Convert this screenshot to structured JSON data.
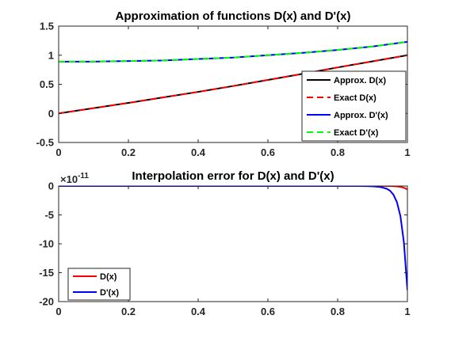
{
  "chart_data": [
    {
      "type": "line",
      "title": "Approximation of functions D(x) and D'(x)",
      "xlabel": "",
      "ylabel": "",
      "xlim": [
        0,
        1
      ],
      "ylim": [
        -0.5,
        1.5
      ],
      "x_ticks": [
        "0",
        "0.2",
        "0.4",
        "0.6",
        "0.8",
        "1"
      ],
      "y_ticks": [
        "-0.5",
        "0",
        "0.5",
        "1",
        "1.5"
      ],
      "grid": false,
      "legend_position": "bottom-right",
      "x": [
        0,
        0.1,
        0.2,
        0.3,
        0.4,
        0.5,
        0.6,
        0.7,
        0.8,
        0.9,
        1.0
      ],
      "series": [
        {
          "name": "Approx. D(x)",
          "color": "#000000",
          "style": "solid",
          "values": [
            0,
            0.09,
            0.18,
            0.275,
            0.37,
            0.47,
            0.575,
            0.68,
            0.79,
            0.895,
            1.0
          ]
        },
        {
          "name": "Exact D(x)",
          "color": "#ff0000",
          "style": "dashed",
          "values": [
            0,
            0.09,
            0.18,
            0.275,
            0.37,
            0.47,
            0.575,
            0.68,
            0.79,
            0.895,
            1.0
          ]
        },
        {
          "name": "Approx. D'(x)",
          "color": "#0000ff",
          "style": "solid",
          "values": [
            0.89,
            0.89,
            0.9,
            0.91,
            0.935,
            0.96,
            1.0,
            1.04,
            1.09,
            1.15,
            1.23
          ]
        },
        {
          "name": "Exact D'(x)",
          "color": "#00ff00",
          "style": "dashed",
          "values": [
            0.89,
            0.89,
            0.9,
            0.91,
            0.935,
            0.96,
            1.0,
            1.04,
            1.09,
            1.15,
            1.23
          ]
        }
      ]
    },
    {
      "type": "line",
      "title": "Interpolation error for D(x) and D'(x)",
      "xlabel": "",
      "ylabel": "",
      "xlim": [
        0,
        1
      ],
      "ylim": [
        -20,
        0
      ],
      "y_multiplier": "×10",
      "y_multiplier_exponent": "-11",
      "x_ticks": [
        "0",
        "0.2",
        "0.4",
        "0.6",
        "0.8",
        "1"
      ],
      "y_ticks": [
        "-20",
        "-15",
        "-10",
        "-5",
        "0"
      ],
      "grid": false,
      "legend_position": "bottom-left",
      "x": [
        0,
        0.1,
        0.2,
        0.3,
        0.4,
        0.5,
        0.6,
        0.7,
        0.8,
        0.85,
        0.88,
        0.9,
        0.92,
        0.94,
        0.95,
        0.96,
        0.97,
        0.98,
        0.99,
        1.0
      ],
      "series": [
        {
          "name": "D(x)",
          "color": "#ff0000",
          "style": "solid",
          "values": [
            0,
            0,
            0,
            0,
            0,
            0,
            0,
            0,
            0,
            0,
            0,
            0,
            0,
            0,
            -0.01,
            -0.03,
            -0.07,
            -0.15,
            -0.3,
            -0.6
          ]
        },
        {
          "name": "D'(x)",
          "color": "#0000ff",
          "style": "solid",
          "values": [
            0,
            0,
            0,
            0,
            0,
            0,
            0,
            0,
            0,
            0,
            -0.02,
            -0.05,
            -0.15,
            -0.45,
            -0.8,
            -1.5,
            -2.8,
            -5.2,
            -9.8,
            -18
          ]
        }
      ]
    }
  ]
}
